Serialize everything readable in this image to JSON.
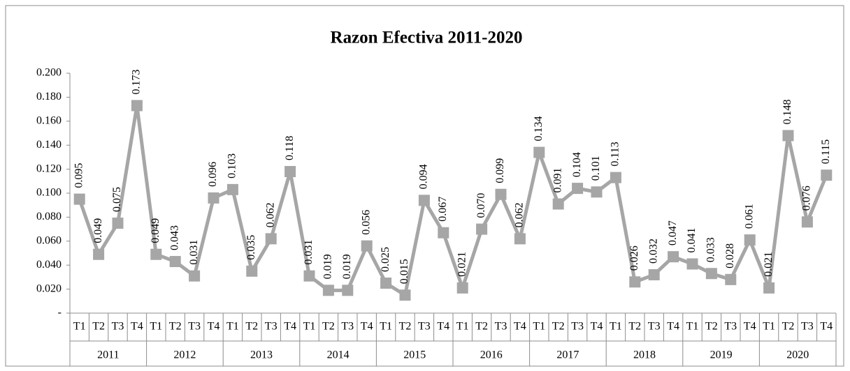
{
  "chart_data": {
    "type": "line",
    "title": "Razon Efectiva 2011-2020",
    "categories": [
      "T1",
      "T2",
      "T3",
      "T4",
      "T1",
      "T2",
      "T3",
      "T4",
      "T1",
      "T2",
      "T3",
      "T4",
      "T1",
      "T2",
      "T3",
      "T4",
      "T1",
      "T2",
      "T3",
      "T4",
      "T1",
      "T2",
      "T3",
      "T4",
      "T1",
      "T2",
      "T3",
      "T4",
      "T1",
      "T2",
      "T3",
      "T4",
      "T1",
      "T2",
      "T3",
      "T4",
      "T1",
      "T2",
      "T3",
      "T4"
    ],
    "years": [
      "2011",
      "2012",
      "2013",
      "2014",
      "2015",
      "2016",
      "2017",
      "2018",
      "2019",
      "2020"
    ],
    "values": [
      0.095,
      0.049,
      0.075,
      0.173,
      0.049,
      0.043,
      0.031,
      0.096,
      0.103,
      0.035,
      0.062,
      0.118,
      0.031,
      0.019,
      0.019,
      0.056,
      0.025,
      0.015,
      0.094,
      0.067,
      0.021,
      0.07,
      0.099,
      0.062,
      0.134,
      0.091,
      0.104,
      0.101,
      0.113,
      0.026,
      0.032,
      0.047,
      0.041,
      0.033,
      0.028,
      0.061,
      0.021,
      0.148,
      0.076,
      0.115
    ],
    "value_labels": [
      "0.095",
      "0.049",
      "0.075",
      "0.173",
      "0.049",
      "0.043",
      "0.031",
      "0.096",
      "0.103",
      "0.035",
      "0.062",
      "0.118",
      "0.031",
      "0.019",
      "0.019",
      "0.056",
      "0.025",
      "0.015",
      "0.094",
      "0.067",
      "0.021",
      "0.070",
      "0.099",
      "0.062",
      "0.134",
      "0.091",
      "0.104",
      "0.101",
      "0.113",
      "0.026",
      "0.032",
      "0.047",
      "0.041",
      "0.033",
      "0.028",
      "0.061",
      "0.021",
      "0.148",
      "0.076",
      "0.115"
    ],
    "color": "#a6a6a6",
    "ylim": [
      0,
      0.2
    ],
    "yticks": [
      {
        "value": 0,
        "label": "-"
      },
      {
        "value": 0.02,
        "label": "0.020"
      },
      {
        "value": 0.04,
        "label": "0.040"
      },
      {
        "value": 0.06,
        "label": "0.060"
      },
      {
        "value": 0.08,
        "label": "0.080"
      },
      {
        "value": 0.1,
        "label": "0.100"
      },
      {
        "value": 0.12,
        "label": "0.120"
      },
      {
        "value": 0.14,
        "label": "0.140"
      },
      {
        "value": 0.16,
        "label": "0.160"
      },
      {
        "value": 0.18,
        "label": "0.180"
      },
      {
        "value": 0.2,
        "label": "0.200"
      }
    ],
    "grid": false
  }
}
